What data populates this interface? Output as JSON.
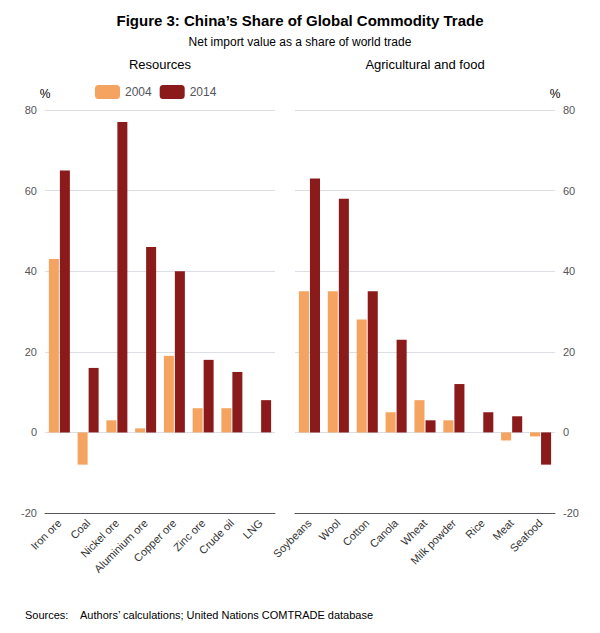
{
  "title": "Figure 3: China’s Share of Global Commodity Trade",
  "subtitle": "Net import value as a share of world trade",
  "source": "Sources:    Authors’ calculations; United Nations COMTRADE database",
  "chart_data": [
    {
      "type": "bar",
      "title": "Resources",
      "categories": [
        "Iron ore",
        "Coal",
        "Nickel ore",
        "Aluminium ore",
        "Copper ore",
        "Zinc ore",
        "Crude oil",
        "LNG"
      ],
      "series": [
        {
          "name": "2004",
          "color": "#F4A460",
          "values": [
            43,
            -8,
            3,
            1,
            19,
            6,
            6,
            0
          ]
        },
        {
          "name": "2014",
          "color": "#8B1A1A",
          "values": [
            65,
            16,
            77,
            46,
            40,
            18,
            15,
            8
          ]
        }
      ],
      "ylabel": "%",
      "ylim": [
        -20,
        80
      ],
      "yticks": [
        -20,
        0,
        20,
        40,
        60,
        80
      ],
      "grid": true,
      "legend": "top"
    },
    {
      "type": "bar",
      "title": "Agricultural and food",
      "categories": [
        "Soybeans",
        "Wool",
        "Cotton",
        "Canola",
        "Wheat",
        "Milk powder",
        "Rice",
        "Meat",
        "Seafood"
      ],
      "series": [
        {
          "name": "2004",
          "color": "#F4A460",
          "values": [
            35,
            35,
            28,
            5,
            8,
            3,
            0,
            -2,
            -1
          ]
        },
        {
          "name": "2014",
          "color": "#8B1A1A",
          "values": [
            63,
            58,
            35,
            23,
            3,
            12,
            5,
            4,
            -8
          ]
        }
      ],
      "ylabel": "%",
      "ylim": [
        -20,
        80
      ],
      "yticks": [
        -20,
        0,
        20,
        40,
        60,
        80
      ],
      "grid": true
    }
  ]
}
